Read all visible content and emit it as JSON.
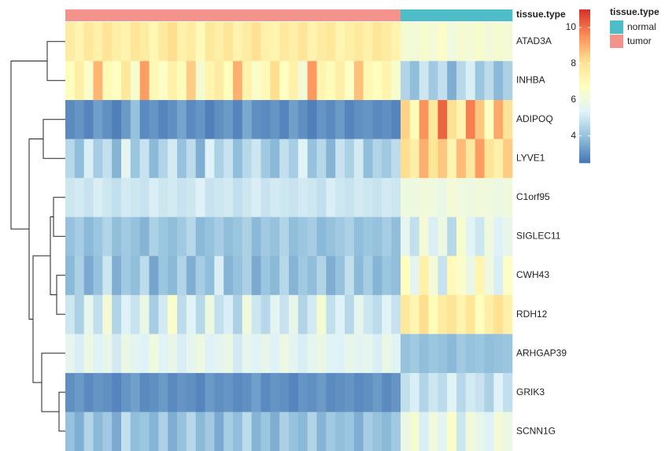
{
  "chart_data": {
    "type": "heatmap",
    "rows": [
      "ATAD3A",
      "INHBA",
      "ADIPOQ",
      "LYVE1",
      "C1orf95",
      "SIGLEC11",
      "CWH43",
      "RDH12",
      "ARHGAP39",
      "GRIK3",
      "SCNN1G"
    ],
    "column_annotation": [
      "tumor",
      "tumor",
      "tumor",
      "tumor",
      "tumor",
      "tumor",
      "tumor",
      "tumor",
      "tumor",
      "tumor",
      "tumor",
      "tumor",
      "tumor",
      "tumor",
      "tumor",
      "tumor",
      "tumor",
      "tumor",
      "tumor",
      "tumor",
      "tumor",
      "tumor",
      "tumor",
      "tumor",
      "tumor",
      "tumor",
      "tumor",
      "tumor",
      "tumor",
      "tumor",
      "tumor",
      "tumor",
      "tumor",
      "tumor",
      "tumor",
      "tumor",
      "normal",
      "normal",
      "normal",
      "normal",
      "normal",
      "normal",
      "normal",
      "normal",
      "normal",
      "normal",
      "normal",
      "normal"
    ],
    "annotation_title": "tissue.type",
    "annotation_levels": [
      {
        "name": "normal",
        "color": "#4dbec7"
      },
      {
        "name": "tumor",
        "color": "#f4928c"
      }
    ],
    "colors": [
      "#4575b4",
      "#91bfdb",
      "#e0f3f8",
      "#ffffbf",
      "#fee090",
      "#fc8d59",
      "#d73027"
    ],
    "colorlim": [
      2.5,
      11
    ],
    "colorticks": [
      4,
      6,
      8,
      10
    ],
    "values": [
      [
        7.6,
        7.2,
        7.8,
        7.4,
        8.0,
        7.5,
        7.3,
        7.9,
        7.6,
        7.1,
        7.7,
        8.2,
        7.4,
        7.6,
        7.0,
        7.8,
        7.5,
        7.9,
        7.3,
        7.6,
        8.1,
        7.4,
        7.2,
        7.7,
        7.5,
        7.9,
        7.3,
        7.6,
        7.8,
        7.2,
        7.5,
        7.7,
        7.4,
        7.9,
        7.6,
        7.3,
        6.3,
        6.1,
        6.4,
        6.2,
        6.5,
        6.0,
        6.3,
        6.2,
        6.4,
        6.1,
        6.3,
        6.2
      ],
      [
        6.8,
        7.5,
        6.5,
        8.9,
        7.0,
        6.7,
        7.8,
        6.4,
        9.3,
        7.1,
        6.6,
        7.4,
        6.9,
        8.5,
        6.3,
        7.2,
        7.6,
        6.8,
        9.0,
        7.3,
        6.5,
        7.0,
        8.2,
        6.7,
        7.4,
        6.1,
        9.4,
        7.2,
        6.9,
        7.5,
        6.6,
        8.7,
        7.1,
        6.8,
        7.3,
        6.4,
        4.5,
        3.9,
        5.0,
        4.2,
        4.8,
        3.6,
        4.6,
        5.2,
        4.1,
        4.7,
        3.8,
        4.4
      ],
      [
        2.9,
        3.1,
        2.8,
        3.3,
        3.0,
        2.7,
        3.2,
        4.0,
        2.9,
        3.1,
        2.8,
        3.0,
        3.4,
        2.9,
        3.1,
        2.7,
        3.0,
        3.2,
        2.8,
        3.5,
        3.0,
        2.9,
        3.1,
        2.8,
        3.3,
        3.0,
        2.7,
        3.1,
        2.9,
        3.2,
        2.8,
        3.0,
        3.1,
        2.9,
        3.0,
        2.8,
        8.4,
        6.9,
        9.5,
        7.8,
        10.2,
        8.1,
        7.2,
        9.8,
        8.6,
        6.7,
        9.1,
        8.0
      ],
      [
        4.6,
        3.9,
        5.2,
        4.3,
        4.8,
        3.7,
        5.5,
        4.1,
        4.9,
        3.8,
        4.5,
        5.1,
        4.0,
        4.7,
        3.6,
        5.3,
        4.4,
        4.9,
        3.9,
        4.6,
        5.0,
        4.2,
        3.8,
        4.8,
        4.3,
        5.4,
        4.0,
        4.6,
        3.7,
        4.9,
        4.4,
        5.1,
        3.9,
        4.5,
        4.2,
        4.7,
        8.2,
        7.5,
        9.0,
        7.9,
        8.6,
        7.2,
        8.8,
        7.7,
        9.3,
        8.0,
        7.4,
        8.5
      ],
      [
        5.0,
        5.1,
        4.9,
        5.2,
        5.0,
        4.8,
        5.1,
        5.0,
        4.9,
        5.2,
        5.0,
        5.1,
        4.9,
        5.0,
        5.3,
        4.9,
        5.0,
        5.1,
        4.8,
        5.0,
        5.2,
        4.9,
        5.1,
        5.0,
        4.9,
        5.1,
        5.0,
        4.8,
        5.2,
        5.0,
        4.9,
        5.1,
        5.0,
        4.9,
        5.1,
        5.0,
        6.0,
        5.9,
        6.1,
        6.0,
        5.8,
        6.2,
        6.0,
        5.9,
        6.1,
        6.0,
        5.9,
        6.0
      ],
      [
        4.0,
        4.3,
        3.8,
        4.1,
        4.5,
        3.9,
        4.2,
        4.0,
        3.7,
        4.4,
        4.1,
        3.9,
        4.2,
        4.6,
        3.8,
        4.0,
        4.3,
        3.9,
        4.1,
        4.4,
        3.8,
        4.2,
        4.0,
        4.5,
        3.9,
        4.1,
        4.3,
        3.8,
        4.0,
        4.2,
        4.4,
        3.9,
        4.1,
        4.0,
        4.3,
        3.9,
        5.6,
        4.8,
        6.2,
        5.2,
        5.9,
        4.6,
        6.4,
        5.4,
        5.0,
        6.0,
        5.3,
        5.7
      ],
      [
        3.8,
        4.4,
        3.5,
        4.0,
        5.0,
        3.6,
        4.2,
        3.9,
        4.7,
        3.4,
        4.1,
        3.8,
        4.5,
        3.6,
        4.3,
        3.9,
        5.2,
        3.7,
        4.0,
        4.4,
        3.5,
        4.1,
        3.8,
        4.6,
        3.7,
        4.2,
        3.9,
        4.5,
        3.6,
        4.0,
        4.8,
        3.8,
        4.3,
        3.7,
        4.1,
        3.9,
        6.8,
        5.5,
        7.4,
        6.2,
        4.9,
        7.0,
        6.5,
        5.8,
        7.2,
        6.0,
        5.2,
        6.6
      ],
      [
        5.0,
        4.4,
        5.6,
        4.8,
        6.2,
        4.5,
        5.3,
        4.9,
        5.8,
        4.3,
        5.1,
        6.5,
        4.7,
        5.4,
        4.6,
        5.9,
        4.8,
        5.2,
        4.4,
        6.0,
        5.0,
        4.6,
        5.5,
        4.9,
        5.7,
        4.5,
        5.1,
        6.3,
        4.8,
        5.3,
        4.6,
        5.6,
        5.0,
        4.7,
        5.4,
        4.9,
        7.8,
        7.2,
        8.2,
        6.9,
        7.6,
        8.0,
        7.3,
        7.9,
        6.8,
        7.5,
        8.1,
        7.4
      ],
      [
        5.6,
        5.2,
        5.9,
        5.4,
        5.7,
        5.1,
        5.8,
        5.5,
        5.3,
        6.0,
        5.4,
        5.7,
        5.2,
        5.6,
        5.9,
        5.3,
        5.5,
        5.8,
        5.1,
        5.6,
        5.4,
        5.7,
        5.3,
        5.9,
        5.5,
        5.2,
        5.6,
        5.8,
        5.4,
        5.3,
        5.7,
        5.5,
        5.6,
        5.2,
        5.8,
        5.4,
        4.0,
        4.2,
        3.9,
        4.1,
        4.0,
        3.8,
        4.2,
        4.0,
        4.1,
        3.9,
        4.0,
        4.1
      ],
      [
        3.0,
        3.2,
        2.9,
        3.1,
        3.0,
        2.8,
        3.1,
        3.3,
        2.9,
        3.0,
        3.2,
        2.9,
        3.1,
        3.0,
        2.8,
        3.2,
        3.0,
        3.1,
        2.9,
        3.0,
        3.3,
        2.9,
        3.1,
        3.0,
        2.8,
        3.1,
        3.0,
        3.2,
        2.9,
        3.0,
        3.1,
        2.9,
        3.0,
        3.2,
        2.9,
        3.1,
        4.8,
        5.2,
        4.5,
        5.0,
        4.7,
        5.4,
        4.6,
        5.1,
        4.9,
        4.4,
        5.3,
        4.8
      ],
      [
        4.0,
        3.6,
        4.5,
        3.8,
        4.2,
        3.5,
        4.8,
        3.9,
        4.1,
        3.7,
        4.4,
        3.6,
        4.0,
        4.6,
        3.8,
        4.2,
        3.5,
        4.3,
        3.9,
        4.7,
        3.7,
        4.1,
        3.6,
        4.4,
        4.0,
        3.8,
        4.5,
        3.7,
        4.2,
        3.9,
        4.1,
        3.6,
        4.3,
        4.0,
        3.8,
        4.2,
        5.8,
        6.3,
        5.2,
        6.0,
        5.5,
        6.5,
        5.0,
        6.1,
        5.7,
        5.3,
        6.2,
        5.9
      ]
    ]
  }
}
